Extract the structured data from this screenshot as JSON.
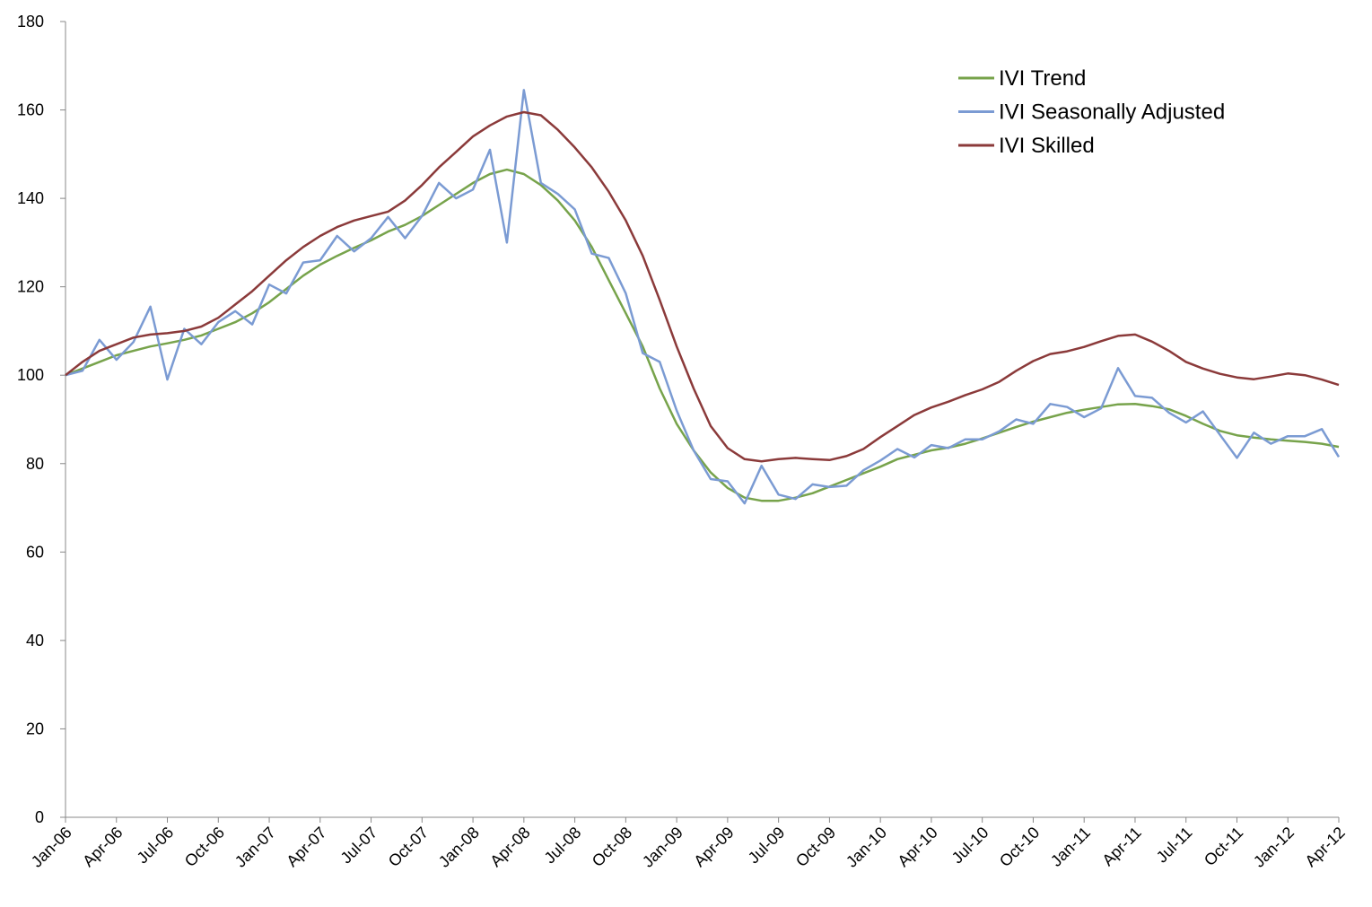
{
  "chart_data": {
    "type": "line",
    "categories": [
      "Jan-06",
      null,
      null,
      "Apr-06",
      null,
      null,
      "Jul-06",
      null,
      null,
      "Oct-06",
      null,
      null,
      "Jan-07",
      null,
      null,
      "Apr-07",
      null,
      null,
      "Jul-07",
      null,
      null,
      "Oct-07",
      null,
      null,
      "Jan-08",
      null,
      null,
      "Apr-08",
      null,
      null,
      "Jul-08",
      null,
      null,
      "Oct-08",
      null,
      null,
      "Jan-09",
      null,
      null,
      "Apr-09",
      null,
      null,
      "Jul-09",
      null,
      null,
      "Oct-09",
      null,
      null,
      "Jan-10",
      null,
      null,
      "Apr-10",
      null,
      null,
      "Jul-10",
      null,
      null,
      "Oct-10",
      null,
      null,
      "Jan-11",
      null,
      null,
      "Apr-11",
      null,
      null,
      "Jul-11",
      null,
      null,
      "Oct-11",
      null,
      null,
      "Jan-12",
      null,
      null,
      "Apr-12"
    ],
    "series": [
      {
        "name": "IVI Trend",
        "color": "#77a34b",
        "values": [
          100,
          101.5,
          103,
          104.5,
          105.5,
          106.5,
          107.2,
          108,
          109,
          110.5,
          112,
          114,
          116.5,
          119.5,
          122.5,
          125,
          127,
          128.8,
          130.5,
          132.5,
          134,
          136,
          138.5,
          141,
          143.5,
          145.5,
          146.5,
          145.5,
          143,
          139.5,
          135,
          129,
          121.5,
          114,
          106.5,
          97,
          89,
          83,
          78,
          74.5,
          72.3,
          71.6,
          71.6,
          72.3,
          73.3,
          74.8,
          76.3,
          77.8,
          79.3,
          81,
          82,
          83,
          83.6,
          84.5,
          85.7,
          87,
          88.3,
          89.5,
          90.5,
          91.5,
          92.2,
          92.8,
          93.4,
          93.5,
          93,
          92.3,
          90.8,
          89,
          87.4,
          86.4,
          85.9,
          85.5,
          85.2,
          84.9,
          84.5,
          83.8
        ]
      },
      {
        "name": "IVI Seasonally Adjusted",
        "color": "#7b9bd3",
        "values": [
          100,
          101,
          108,
          103.5,
          107.5,
          115.5,
          99,
          110.5,
          107,
          112,
          114.5,
          111.5,
          120.5,
          118.5,
          125.5,
          126,
          131.5,
          128,
          131,
          135.8,
          131,
          136,
          143.5,
          140,
          142,
          151,
          130,
          164.5,
          143.5,
          141,
          137.5,
          127.5,
          126.5,
          118.5,
          105,
          103,
          92,
          83,
          76.5,
          76,
          71,
          79.5,
          73,
          72,
          75.3,
          74.7,
          75,
          78.5,
          80.7,
          83.3,
          81.4,
          84.2,
          83.5,
          85.5,
          85.5,
          87.3,
          90,
          89,
          93.5,
          92.8,
          90.5,
          92.5,
          101.6,
          95.3,
          94.9,
          91.5,
          89.3,
          91.8,
          86.5,
          81.3,
          87,
          84.5,
          86.2,
          86.2,
          87.8,
          81.5
        ]
      },
      {
        "name": "IVI Skilled",
        "color": "#8b3a3a",
        "values": [
          100,
          103,
          105.5,
          107,
          108.5,
          109.2,
          109.5,
          110,
          111,
          113,
          116,
          119,
          122.5,
          126,
          129,
          131.5,
          133.5,
          135,
          136,
          137,
          139.5,
          143,
          147,
          150.5,
          154,
          156.5,
          158.5,
          159.5,
          158.8,
          155.5,
          151.5,
          147,
          141.5,
          135,
          127,
          117,
          106.5,
          97,
          88.5,
          83.5,
          81,
          80.5,
          81,
          81.3,
          81,
          80.8,
          81.7,
          83.3,
          86,
          88.5,
          91,
          92.7,
          94,
          95.5,
          96.8,
          98.5,
          101,
          103.2,
          104.8,
          105.4,
          106.4,
          107.7,
          108.9,
          109.2,
          107.6,
          105.5,
          103,
          101.5,
          100.3,
          99.5,
          99.1,
          99.7,
          100.4,
          100,
          99,
          97.8
        ]
      }
    ],
    "ylim": [
      0,
      180
    ],
    "yticks": [
      0,
      20,
      40,
      60,
      80,
      100,
      120,
      140,
      160,
      180
    ],
    "grid": false,
    "legend": "upper right"
  }
}
